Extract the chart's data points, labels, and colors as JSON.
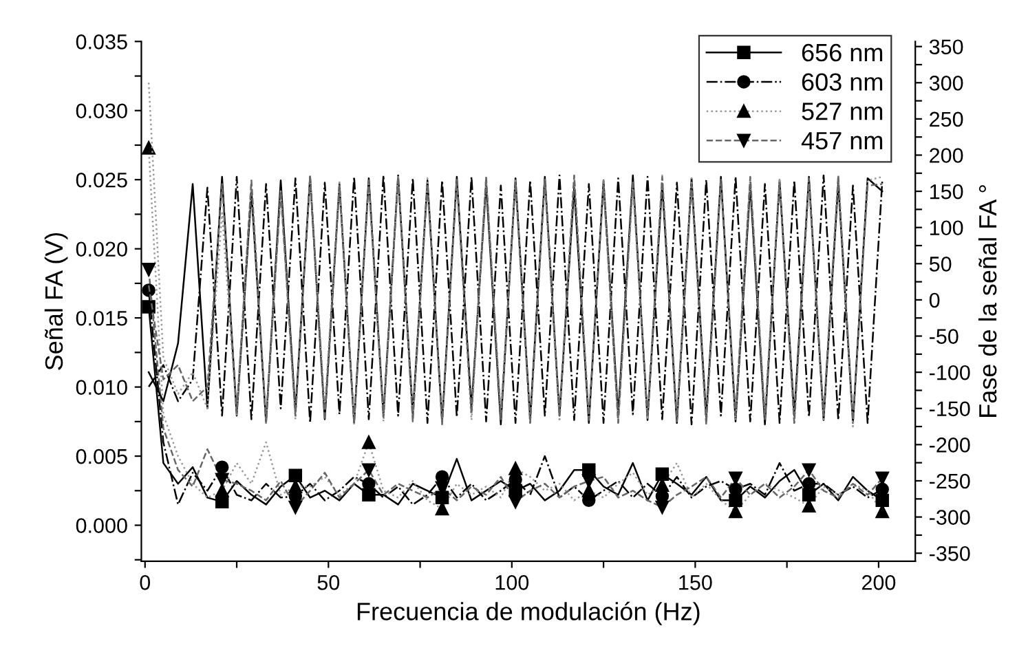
{
  "chart_data": {
    "type": "line",
    "xlabel": "Frecuencia de modulación (Hz)",
    "ylabel": "Señal FA (V)",
    "y2label": "Fase de la señal FA °",
    "x": [
      1,
      5,
      9,
      13,
      17,
      21,
      25,
      29,
      33,
      37,
      41,
      45,
      49,
      53,
      57,
      61,
      65,
      69,
      73,
      77,
      81,
      85,
      89,
      93,
      97,
      101,
      105,
      109,
      113,
      117,
      121,
      125,
      129,
      133,
      137,
      141,
      145,
      149,
      153,
      157,
      161,
      165,
      169,
      173,
      177,
      181,
      185,
      189,
      193,
      197,
      201
    ],
    "xlim": [
      -1,
      210
    ],
    "xticks": [
      0,
      {
        "value": 25,
        "label": null
      },
      50,
      {
        "value": 75,
        "label": null
      },
      100,
      {
        "value": 125,
        "label": null
      },
      150,
      {
        "value": 175,
        "label": null
      },
      200
    ],
    "ylim": [
      -0.0026,
      0.035
    ],
    "yticks": [
      {
        "value": -0.0025,
        "label": null
      },
      {
        "value": 0,
        "label": "0.000"
      },
      {
        "value": 0.0025,
        "label": null
      },
      {
        "value": 0.005,
        "label": "0.005"
      },
      {
        "value": 0.0075,
        "label": null
      },
      {
        "value": 0.01,
        "label": "0.010"
      },
      {
        "value": 0.0125,
        "label": null
      },
      {
        "value": 0.015,
        "label": "0.015"
      },
      {
        "value": 0.0175,
        "label": null
      },
      {
        "value": 0.02,
        "label": "0.020"
      },
      {
        "value": 0.0225,
        "label": null
      },
      {
        "value": 0.025,
        "label": "0.025"
      },
      {
        "value": 0.0275,
        "label": null
      },
      {
        "value": 0.03,
        "label": "0.030"
      },
      {
        "value": 0.0325,
        "label": null
      },
      {
        "value": 0.035,
        "label": "0.035"
      }
    ],
    "y2lim": [
      -361,
      357
    ],
    "y2ticks": [
      -350,
      {
        "value": -325,
        "label": null
      },
      -300,
      {
        "value": -275,
        "label": null
      },
      -250,
      {
        "value": -225,
        "label": null
      },
      -200,
      {
        "value": -175,
        "label": null
      },
      -150,
      {
        "value": -125,
        "label": null
      },
      -100,
      {
        "value": -75,
        "label": null
      },
      -50,
      {
        "value": -25,
        "label": null
      },
      0,
      {
        "value": 25,
        "label": null
      },
      50,
      {
        "value": 75,
        "label": null
      },
      100,
      {
        "value": 125,
        "label": null
      },
      150,
      {
        "value": 175,
        "label": null
      },
      200,
      {
        "value": 225,
        "label": null
      },
      250,
      {
        "value": 275,
        "label": null
      },
      300,
      {
        "value": 325,
        "label": null
      },
      350
    ],
    "grid": false,
    "legend": "top right",
    "series": [
      {
        "color": "#000000",
        "marker": "none",
        "line_style": "solid",
        "values": [
          0.0158,
          0.0045,
          0.003,
          0.0042,
          0.002,
          0.0017,
          0.0032,
          0.0022,
          0.0015,
          0.0028,
          0.0036,
          0.002,
          0.0025,
          0.0018,
          0.003,
          0.0022,
          0.0022,
          0.0015,
          0.003,
          0.0025,
          0.002,
          0.0048,
          0.0018,
          0.0025,
          0.0032,
          0.0025,
          0.003,
          0.0018,
          0.0025,
          0.004,
          0.004,
          0.0028,
          0.0022,
          0.0045,
          0.0018,
          0.0037,
          0.003,
          0.0022,
          0.0035,
          0.0018,
          0.0018,
          0.0028,
          0.002,
          0.0032,
          0.004,
          0.0022,
          0.003,
          0.0018,
          0.0035,
          0.0025,
          0.0018
        ]
      },
      {
        "name": "656 nm",
        "type": "scatter",
        "color": "#000000",
        "marker": "square",
        "x": [
          1,
          21,
          41,
          61,
          81,
          101,
          121,
          141,
          161,
          181,
          201
        ],
        "values": [
          0.0158,
          0.0017,
          0.0036,
          0.0022,
          0.002,
          0.0025,
          0.004,
          0.0037,
          0.0018,
          0.0022,
          0.0018
        ]
      },
      {
        "color": "#000000",
        "marker": "none",
        "line_style": "dashdot",
        "values": [
          0.017,
          0.006,
          0.0015,
          0.0038,
          0.0025,
          0.0042,
          0.0022,
          0.0018,
          0.003,
          0.002,
          0.0021,
          0.003,
          0.0018,
          0.0025,
          0.0035,
          0.003,
          0.002,
          0.0028,
          0.0015,
          0.0022,
          0.0035,
          0.002,
          0.003,
          0.0018,
          0.0025,
          0.0033,
          0.0022,
          0.005,
          0.002,
          0.0028,
          0.0018,
          0.0025,
          0.0032,
          0.002,
          0.003,
          0.0021,
          0.0035,
          0.002,
          0.0028,
          0.0032,
          0.0026,
          0.003,
          0.0022,
          0.0045,
          0.0025,
          0.003,
          0.003,
          0.0022,
          0.0028,
          0.002,
          0.0026
        ]
      },
      {
        "name": "603 nm",
        "type": "scatter",
        "color": "#000000",
        "marker": "circle",
        "x": [
          1,
          21,
          41,
          61,
          81,
          101,
          121,
          141,
          161,
          181,
          201
        ],
        "values": [
          0.017,
          0.0042,
          0.0021,
          0.003,
          0.0035,
          0.0033,
          0.0018,
          0.0021,
          0.0026,
          0.003,
          0.0026
        ]
      },
      {
        "color": "#999999",
        "marker": "none",
        "line_style": "dotted",
        "values": [
          0.0273,
          0.008,
          0.005,
          0.003,
          0.002,
          0.0025,
          0.0045,
          0.003,
          0.006,
          0.0022,
          0.0028,
          0.0028,
          0.0035,
          0.0022,
          0.003,
          0.006,
          0.0025,
          0.002,
          0.0032,
          0.0018,
          0.0012,
          0.003,
          0.0022,
          0.0028,
          0.002,
          0.0041,
          0.0035,
          0.0025,
          0.003,
          0.0018,
          0.0025,
          0.002,
          0.003,
          0.0038,
          0.0022,
          0.0029,
          0.0045,
          0.002,
          0.003,
          0.0018,
          0.001,
          0.0022,
          0.003,
          0.0025,
          0.002,
          0.0014,
          0.0028,
          0.0022,
          0.003,
          0.0025,
          0.001
        ]
      },
      {
        "name": "527 nm",
        "type": "scatter",
        "color": "#000000",
        "marker": "triangle",
        "x": [
          1,
          21,
          41,
          61,
          81,
          101,
          121,
          141,
          161,
          181,
          201
        ],
        "values": [
          0.0273,
          0.0025,
          0.0028,
          0.006,
          0.0012,
          0.0041,
          0.0025,
          0.0029,
          0.001,
          0.0014,
          0.001
        ]
      },
      {
        "color": "#666666",
        "marker": "none",
        "line_style": "dashed",
        "values": [
          0.0185,
          0.007,
          0.004,
          0.0028,
          0.0055,
          0.0033,
          0.003,
          0.0025,
          0.0018,
          0.0032,
          0.0013,
          0.0025,
          0.0038,
          0.002,
          0.003,
          0.004,
          0.0022,
          0.003,
          0.0025,
          0.002,
          0.0027,
          0.0018,
          0.0028,
          0.0022,
          0.0035,
          0.0017,
          0.0025,
          0.003,
          0.002,
          0.0028,
          0.0032,
          0.0035,
          0.002,
          0.0025,
          0.0018,
          0.0013,
          0.0022,
          0.0028,
          0.0035,
          0.002,
          0.0034,
          0.0022,
          0.003,
          0.002,
          0.0028,
          0.004,
          0.0025,
          0.002,
          0.003,
          0.0022,
          0.0034
        ]
      },
      {
        "name": "457 nm",
        "type": "scatter",
        "color": "#000000",
        "marker": "triangle_down",
        "x": [
          1,
          21,
          41,
          61,
          81,
          101,
          121,
          141,
          161,
          181,
          201
        ],
        "values": [
          0.0185,
          0.0033,
          0.0013,
          0.004,
          0.0027,
          0.0017,
          0.0032,
          0.0013,
          0.0034,
          0.004,
          0.0034
        ]
      },
      {
        "axis": "y2",
        "color": "#000000",
        "marker": "none",
        "line_style": "solid",
        "values": [
          -100,
          -140,
          -60,
          160,
          -150,
          170,
          -160,
          150,
          -170,
          165,
          -155,
          170,
          -165,
          160,
          -170,
          168,
          -160,
          172,
          -158,
          165,
          -168,
          170,
          -150,
          160,
          -172,
          168,
          -165,
          170,
          -160,
          155,
          -170,
          165,
          -158,
          172,
          -166,
          160,
          -170,
          168,
          -162,
          170,
          -168,
          158,
          -172,
          165,
          -160,
          170,
          -166,
          162,
          -170,
          168,
          150
        ]
      },
      {
        "axis": "y2",
        "color": "#000000",
        "marker": "none",
        "line_style": "dashdot",
        "values": [
          -120,
          -90,
          -140,
          -110,
          155,
          -160,
          170,
          -165,
          160,
          -150,
          168,
          -170,
          162,
          -158,
          170,
          -165,
          172,
          -160,
          168,
          -170,
          165,
          -162,
          170,
          -168,
          158,
          -170,
          165,
          -160,
          172,
          -166,
          160,
          -170,
          168,
          -158,
          170,
          -165,
          162,
          -172,
          166,
          -160,
          170,
          -168,
          160,
          -170,
          165,
          -162,
          172,
          -166,
          158,
          -170,
          165
        ]
      },
      {
        "axis": "y2",
        "color": "#999999",
        "marker": "none",
        "line_style": "dotted",
        "values": [
          300,
          -80,
          -130,
          -100,
          -150,
          120,
          -160,
          160,
          -170,
          150,
          -165,
          170,
          -150,
          165,
          -172,
          160,
          -168,
          172,
          -162,
          168,
          -170,
          162,
          -166,
          170,
          -158,
          165,
          -172,
          160,
          -168,
          170,
          -162,
          166,
          -170,
          158,
          -165,
          172,
          -160,
          168,
          -170,
          162,
          -166,
          170,
          -158,
          168,
          -172,
          160,
          -165,
          170,
          -175,
          165,
          170
        ]
      },
      {
        "axis": "y2",
        "color": "#666666",
        "marker": "none",
        "line_style": "dashed",
        "values": [
          20,
          -110,
          -90,
          -140,
          -120,
          160,
          -155,
          165,
          -168,
          150,
          -160,
          172,
          -166,
          158,
          -170,
          165,
          -162,
          170,
          -168,
          160,
          -172,
          166,
          -158,
          170,
          -165,
          162,
          -170,
          168,
          -160,
          172,
          -166,
          158,
          -170,
          165,
          -162,
          170,
          -168,
          160,
          -172,
          166,
          -158,
          170,
          -165,
          162,
          -170,
          168,
          -160,
          172,
          -166,
          158,
          160
        ]
      }
    ]
  }
}
